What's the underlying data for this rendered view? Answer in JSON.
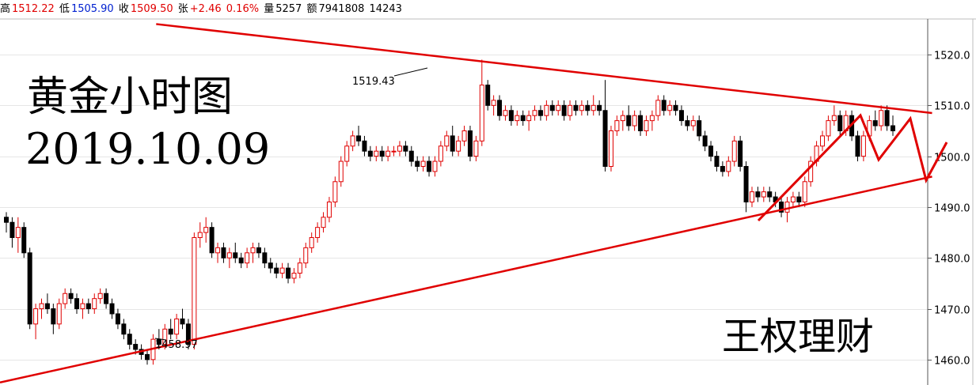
{
  "topbar": {
    "high_label": "高",
    "high": "1512.22",
    "low_label": "低",
    "low": "1505.90",
    "close_label": "收",
    "close": "1509.50",
    "change_label": "张",
    "change": "+2.46",
    "change_pct": "0.16%",
    "volume_label": "量",
    "volume": "5257",
    "amount_label": "额",
    "amount": "7941808",
    "extra": "14243"
  },
  "annotations": {
    "title": "黄金小时图",
    "date": "2019.10.09",
    "author": "王权理财",
    "high_mark": "1519.43",
    "low_mark": "1458.97"
  },
  "colors": {
    "up": "#e00000",
    "down": "#000000",
    "trendline": "#e00000",
    "grid": "#e6e6e6"
  },
  "chart_data": {
    "type": "candlestick",
    "ylim": [
      1455,
      1527
    ],
    "yticks": [
      "1460.0",
      "1470.0",
      "1480.0",
      "1490.0",
      "1500.0",
      "1510.0",
      "1520.0"
    ],
    "grid": true,
    "candles": [
      [
        1488,
        1489,
        1485,
        1487
      ],
      [
        1487,
        1488,
        1482,
        1484
      ],
      [
        1484,
        1488,
        1481,
        1486
      ],
      [
        1486,
        1487,
        1480,
        1481
      ],
      [
        1481,
        1482,
        1466,
        1467
      ],
      [
        1467,
        1471,
        1464,
        1470
      ],
      [
        1470,
        1472,
        1468,
        1471
      ],
      [
        1471,
        1473,
        1469,
        1470
      ],
      [
        1470,
        1471,
        1465,
        1467
      ],
      [
        1467,
        1472,
        1466,
        1471
      ],
      [
        1471,
        1474,
        1470,
        1473
      ],
      [
        1473,
        1474,
        1471,
        1472
      ],
      [
        1472,
        1473,
        1469,
        1470
      ],
      [
        1470,
        1472,
        1468,
        1471
      ],
      [
        1471,
        1472,
        1469,
        1470
      ],
      [
        1470,
        1473,
        1469,
        1472
      ],
      [
        1472,
        1474,
        1471,
        1473
      ],
      [
        1473,
        1474,
        1470,
        1471
      ],
      [
        1471,
        1472,
        1468,
        1469
      ],
      [
        1469,
        1470,
        1466,
        1467
      ],
      [
        1467,
        1468,
        1464,
        1465
      ],
      [
        1465,
        1466,
        1462,
        1463
      ],
      [
        1463,
        1464,
        1461,
        1462
      ],
      [
        1462,
        1463,
        1460,
        1461
      ],
      [
        1461,
        1462,
        1459,
        1460
      ],
      [
        1460,
        1465,
        1459,
        1464
      ],
      [
        1464,
        1466,
        1462,
        1463
      ],
      [
        1463,
        1467,
        1462,
        1466
      ],
      [
        1466,
        1468,
        1464,
        1465
      ],
      [
        1465,
        1469,
        1464,
        1468
      ],
      [
        1468,
        1470,
        1466,
        1467
      ],
      [
        1467,
        1468,
        1462,
        1463
      ],
      [
        1463,
        1485,
        1462,
        1484
      ],
      [
        1484,
        1487,
        1482,
        1485
      ],
      [
        1485,
        1488,
        1483,
        1486
      ],
      [
        1486,
        1487,
        1480,
        1481
      ],
      [
        1481,
        1483,
        1479,
        1482
      ],
      [
        1482,
        1483,
        1479,
        1480
      ],
      [
        1480,
        1482,
        1478,
        1481
      ],
      [
        1481,
        1483,
        1479,
        1480
      ],
      [
        1480,
        1481,
        1478,
        1479
      ],
      [
        1479,
        1482,
        1478,
        1481
      ],
      [
        1481,
        1483,
        1479,
        1482
      ],
      [
        1482,
        1483,
        1480,
        1481
      ],
      [
        1481,
        1482,
        1478,
        1479
      ],
      [
        1479,
        1480,
        1477,
        1478
      ],
      [
        1478,
        1479,
        1476,
        1477
      ],
      [
        1477,
        1479,
        1476,
        1478
      ],
      [
        1478,
        1479,
        1475,
        1476
      ],
      [
        1476,
        1478,
        1475,
        1477
      ],
      [
        1477,
        1480,
        1476,
        1479
      ],
      [
        1479,
        1483,
        1478,
        1482
      ],
      [
        1482,
        1485,
        1481,
        1484
      ],
      [
        1484,
        1487,
        1483,
        1486
      ],
      [
        1486,
        1489,
        1485,
        1488
      ],
      [
        1488,
        1492,
        1487,
        1491
      ],
      [
        1491,
        1496,
        1490,
        1495
      ],
      [
        1495,
        1500,
        1494,
        1499
      ],
      [
        1499,
        1503,
        1498,
        1502
      ],
      [
        1502,
        1505,
        1501,
        1504
      ],
      [
        1504,
        1506,
        1502,
        1503
      ],
      [
        1503,
        1504,
        1500,
        1501
      ],
      [
        1501,
        1502,
        1499,
        1500
      ],
      [
        1500,
        1502,
        1499,
        1501
      ],
      [
        1501,
        1502,
        1499,
        1500
      ],
      [
        1500,
        1502,
        1499,
        1501
      ],
      [
        1501,
        1502,
        1500,
        1501
      ],
      [
        1501,
        1503,
        1500,
        1502
      ],
      [
        1502,
        1503,
        1500,
        1501
      ],
      [
        1501,
        1502,
        1498,
        1499
      ],
      [
        1499,
        1500,
        1497,
        1498
      ],
      [
        1498,
        1500,
        1497,
        1499
      ],
      [
        1499,
        1500,
        1496,
        1497
      ],
      [
        1497,
        1500,
        1496,
        1499
      ],
      [
        1499,
        1503,
        1498,
        1502
      ],
      [
        1502,
        1505,
        1501,
        1504
      ],
      [
        1504,
        1506,
        1500,
        1501
      ],
      [
        1501,
        1504,
        1500,
        1503
      ],
      [
        1503,
        1506,
        1502,
        1505
      ],
      [
        1505,
        1506,
        1499,
        1500
      ],
      [
        1500,
        1504,
        1499,
        1503
      ],
      [
        1503,
        1519,
        1502,
        1514
      ],
      [
        1514,
        1515,
        1509,
        1510
      ],
      [
        1510,
        1512,
        1508,
        1511
      ],
      [
        1511,
        1512,
        1507,
        1508
      ],
      [
        1508,
        1510,
        1507,
        1509
      ],
      [
        1509,
        1510,
        1506,
        1507
      ],
      [
        1507,
        1509,
        1506,
        1508
      ],
      [
        1508,
        1509,
        1506,
        1507
      ],
      [
        1507,
        1509,
        1505,
        1508
      ],
      [
        1508,
        1510,
        1507,
        1509
      ],
      [
        1509,
        1510,
        1507,
        1508
      ],
      [
        1508,
        1511,
        1507,
        1510
      ],
      [
        1510,
        1511,
        1508,
        1509
      ],
      [
        1509,
        1511,
        1508,
        1510
      ],
      [
        1510,
        1511,
        1507,
        1508
      ],
      [
        1508,
        1511,
        1507,
        1510
      ],
      [
        1510,
        1511,
        1508,
        1509
      ],
      [
        1509,
        1511,
        1508,
        1510
      ],
      [
        1510,
        1511,
        1508,
        1509
      ],
      [
        1509,
        1512,
        1508,
        1510
      ],
      [
        1510,
        1511,
        1508,
        1509
      ],
      [
        1509,
        1515,
        1497,
        1498
      ],
      [
        1498,
        1506,
        1497,
        1505
      ],
      [
        1505,
        1508,
        1504,
        1507
      ],
      [
        1507,
        1509,
        1505,
        1508
      ],
      [
        1508,
        1510,
        1505,
        1506
      ],
      [
        1506,
        1509,
        1505,
        1508
      ],
      [
        1508,
        1509,
        1504,
        1505
      ],
      [
        1505,
        1508,
        1504,
        1507
      ],
      [
        1507,
        1509,
        1505,
        1508
      ],
      [
        1508,
        1512,
        1507,
        1511
      ],
      [
        1511,
        1512,
        1508,
        1509
      ],
      [
        1509,
        1511,
        1508,
        1510
      ],
      [
        1510,
        1511,
        1508,
        1509
      ],
      [
        1509,
        1510,
        1506,
        1507
      ],
      [
        1507,
        1508,
        1505,
        1506
      ],
      [
        1506,
        1508,
        1505,
        1507
      ],
      [
        1507,
        1508,
        1503,
        1504
      ],
      [
        1504,
        1505,
        1501,
        1502
      ],
      [
        1502,
        1503,
        1499,
        1500
      ],
      [
        1500,
        1501,
        1497,
        1498
      ],
      [
        1498,
        1499,
        1496,
        1497
      ],
      [
        1497,
        1500,
        1496,
        1499
      ],
      [
        1499,
        1504,
        1498,
        1503
      ],
      [
        1503,
        1504,
        1497,
        1498
      ],
      [
        1498,
        1499,
        1489,
        1491
      ],
      [
        1491,
        1494,
        1490,
        1493
      ],
      [
        1493,
        1494,
        1491,
        1492
      ],
      [
        1492,
        1494,
        1491,
        1493
      ],
      [
        1493,
        1494,
        1491,
        1492
      ],
      [
        1492,
        1493,
        1490,
        1491
      ],
      [
        1491,
        1492,
        1488,
        1489
      ],
      [
        1489,
        1492,
        1487,
        1491
      ],
      [
        1491,
        1493,
        1490,
        1492
      ],
      [
        1492,
        1493,
        1490,
        1491
      ],
      [
        1491,
        1496,
        1490,
        1495
      ],
      [
        1495,
        1500,
        1494,
        1499
      ],
      [
        1499,
        1503,
        1498,
        1502
      ],
      [
        1502,
        1505,
        1501,
        1504
      ],
      [
        1504,
        1508,
        1503,
        1507
      ],
      [
        1507,
        1510,
        1506,
        1508
      ],
      [
        1508,
        1509,
        1504,
        1505
      ],
      [
        1505,
        1509,
        1504,
        1508
      ],
      [
        1508,
        1509,
        1503,
        1504
      ],
      [
        1504,
        1505,
        1499,
        1500
      ],
      [
        1500,
        1505,
        1499,
        1504
      ],
      [
        1504,
        1508,
        1503,
        1507
      ],
      [
        1507,
        1509,
        1505,
        1506
      ],
      [
        1506,
        1510,
        1505,
        1509
      ],
      [
        1509,
        1510,
        1505,
        1506
      ],
      [
        1506,
        1508,
        1504,
        1505
      ]
    ],
    "trendlines": [
      {
        "from": [
          0.16,
          1526.0
        ],
        "to": [
          0.955,
          1508.5
        ]
      },
      {
        "from": [
          0.0,
          1455.5
        ],
        "to": [
          0.955,
          1496.0
        ]
      }
    ]
  }
}
